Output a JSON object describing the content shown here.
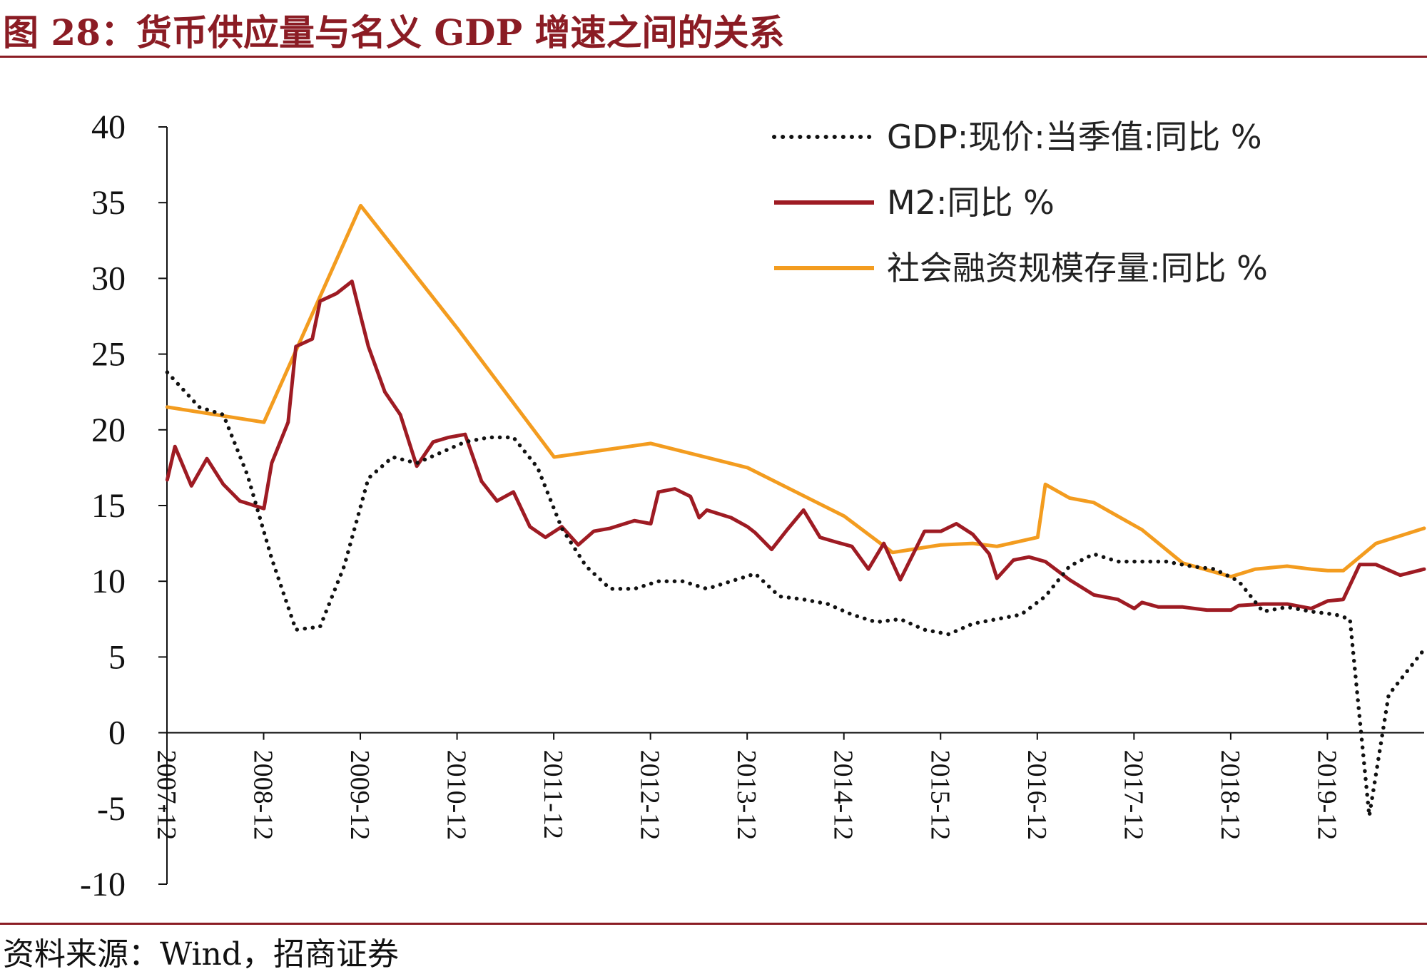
{
  "figure": {
    "title": "图 28：货币供应量与名义 GDP 增速之间的关系",
    "source": "资料来源：Wind，招商证券"
  },
  "chart_data": {
    "type": "line",
    "ylim": [
      -10,
      40
    ],
    "yticks": [
      "40",
      "35",
      "30",
      "25",
      "20",
      "15",
      "10",
      "5",
      "0",
      "-5",
      "-10"
    ],
    "ytick_values": [
      40,
      35,
      30,
      25,
      20,
      15,
      10,
      5,
      0,
      -5,
      -10
    ],
    "xlim": [
      2007.917,
      2020.917
    ],
    "xticks": [
      "2007-12",
      "2008-12",
      "2009-12",
      "2010-12",
      "2011-12",
      "2012-12",
      "2013-12",
      "2014-12",
      "2015-12",
      "2016-12",
      "2017-12",
      "2018-12",
      "2019-12"
    ],
    "legend_position": "top-right",
    "grid": false,
    "series": [
      {
        "name": "GDP:现价:当季值:同比 %",
        "color": "#111111",
        "style": "dotted",
        "points": [
          [
            2007.92,
            23.8
          ],
          [
            2008.25,
            21.5
          ],
          [
            2008.5,
            21.0
          ],
          [
            2008.75,
            17.0
          ],
          [
            2009.0,
            11.5
          ],
          [
            2009.25,
            6.8
          ],
          [
            2009.5,
            7.0
          ],
          [
            2009.75,
            11.0
          ],
          [
            2010.0,
            16.8
          ],
          [
            2010.25,
            18.2
          ],
          [
            2010.5,
            17.8
          ],
          [
            2010.75,
            18.5
          ],
          [
            2011.0,
            19.2
          ],
          [
            2011.25,
            19.5
          ],
          [
            2011.5,
            19.5
          ],
          [
            2011.75,
            17.5
          ],
          [
            2012.0,
            13.5
          ],
          [
            2012.25,
            11.0
          ],
          [
            2012.5,
            9.5
          ],
          [
            2012.75,
            9.5
          ],
          [
            2013.0,
            10.0
          ],
          [
            2013.25,
            10.0
          ],
          [
            2013.5,
            9.5
          ],
          [
            2013.75,
            10.0
          ],
          [
            2014.0,
            10.5
          ],
          [
            2014.25,
            9.0
          ],
          [
            2014.5,
            8.8
          ],
          [
            2014.75,
            8.5
          ],
          [
            2015.0,
            7.8
          ],
          [
            2015.25,
            7.3
          ],
          [
            2015.5,
            7.5
          ],
          [
            2015.75,
            6.8
          ],
          [
            2016.0,
            6.5
          ],
          [
            2016.25,
            7.2
          ],
          [
            2016.5,
            7.5
          ],
          [
            2016.75,
            7.8
          ],
          [
            2017.0,
            9.0
          ],
          [
            2017.25,
            11.0
          ],
          [
            2017.5,
            11.8
          ],
          [
            2017.75,
            11.3
          ],
          [
            2018.0,
            11.3
          ],
          [
            2018.25,
            11.3
          ],
          [
            2018.5,
            11.0
          ],
          [
            2018.75,
            10.8
          ],
          [
            2019.0,
            10.0
          ],
          [
            2019.25,
            8.0
          ],
          [
            2019.5,
            8.3
          ],
          [
            2019.75,
            8.0
          ],
          [
            2020.0,
            7.8
          ],
          [
            2020.15,
            7.5
          ],
          [
            2020.35,
            -5.5
          ],
          [
            2020.55,
            2.5
          ],
          [
            2020.917,
            5.5
          ]
        ]
      },
      {
        "name": "M2:同比 %",
        "color": "#9e1b23",
        "style": "solid",
        "points": [
          [
            2007.92,
            16.7
          ],
          [
            2008.0,
            18.9
          ],
          [
            2008.17,
            16.3
          ],
          [
            2008.33,
            18.1
          ],
          [
            2008.5,
            16.4
          ],
          [
            2008.67,
            15.3
          ],
          [
            2008.92,
            14.8
          ],
          [
            2009.0,
            17.8
          ],
          [
            2009.17,
            20.5
          ],
          [
            2009.25,
            25.5
          ],
          [
            2009.42,
            26.0
          ],
          [
            2009.5,
            28.5
          ],
          [
            2009.67,
            29.0
          ],
          [
            2009.83,
            29.8
          ],
          [
            2009.92,
            27.5
          ],
          [
            2010.0,
            25.5
          ],
          [
            2010.17,
            22.5
          ],
          [
            2010.33,
            21.0
          ],
          [
            2010.5,
            17.6
          ],
          [
            2010.67,
            19.2
          ],
          [
            2010.83,
            19.5
          ],
          [
            2011.0,
            19.7
          ],
          [
            2011.17,
            16.6
          ],
          [
            2011.33,
            15.3
          ],
          [
            2011.5,
            15.9
          ],
          [
            2011.67,
            13.6
          ],
          [
            2011.83,
            12.9
          ],
          [
            2012.0,
            13.6
          ],
          [
            2012.17,
            12.4
          ],
          [
            2012.33,
            13.3
          ],
          [
            2012.5,
            13.5
          ],
          [
            2012.75,
            14.0
          ],
          [
            2012.92,
            13.8
          ],
          [
            2013.0,
            15.9
          ],
          [
            2013.17,
            16.1
          ],
          [
            2013.33,
            15.6
          ],
          [
            2013.42,
            14.2
          ],
          [
            2013.5,
            14.7
          ],
          [
            2013.75,
            14.2
          ],
          [
            2013.92,
            13.6
          ],
          [
            2014.0,
            13.2
          ],
          [
            2014.17,
            12.1
          ],
          [
            2014.33,
            13.4
          ],
          [
            2014.5,
            14.7
          ],
          [
            2014.67,
            12.9
          ],
          [
            2014.83,
            12.6
          ],
          [
            2015.0,
            12.3
          ],
          [
            2015.17,
            10.8
          ],
          [
            2015.33,
            12.5
          ],
          [
            2015.5,
            10.1
          ],
          [
            2015.75,
            13.3
          ],
          [
            2015.92,
            13.3
          ],
          [
            2016.08,
            13.8
          ],
          [
            2016.25,
            13.1
          ],
          [
            2016.42,
            11.8
          ],
          [
            2016.5,
            10.2
          ],
          [
            2016.67,
            11.4
          ],
          [
            2016.83,
            11.6
          ],
          [
            2017.0,
            11.3
          ],
          [
            2017.25,
            10.1
          ],
          [
            2017.5,
            9.1
          ],
          [
            2017.75,
            8.8
          ],
          [
            2017.92,
            8.2
          ],
          [
            2018.0,
            8.6
          ],
          [
            2018.17,
            8.3
          ],
          [
            2018.42,
            8.3
          ],
          [
            2018.67,
            8.1
          ],
          [
            2018.92,
            8.1
          ],
          [
            2019.0,
            8.4
          ],
          [
            2019.25,
            8.5
          ],
          [
            2019.5,
            8.5
          ],
          [
            2019.75,
            8.2
          ],
          [
            2019.92,
            8.7
          ],
          [
            2020.08,
            8.8
          ],
          [
            2020.25,
            11.1
          ],
          [
            2020.42,
            11.1
          ],
          [
            2020.67,
            10.4
          ],
          [
            2020.917,
            10.8
          ]
        ]
      },
      {
        "name": "社会融资规模存量:同比 %",
        "color": "#f39c1f",
        "style": "solid",
        "points": [
          [
            2007.92,
            21.5
          ],
          [
            2008.92,
            20.5
          ],
          [
            2009.92,
            34.8
          ],
          [
            2010.92,
            26.7
          ],
          [
            2011.92,
            18.2
          ],
          [
            2012.92,
            19.1
          ],
          [
            2013.92,
            17.5
          ],
          [
            2014.92,
            14.3
          ],
          [
            2015.42,
            11.9
          ],
          [
            2015.92,
            12.4
          ],
          [
            2016.25,
            12.5
          ],
          [
            2016.5,
            12.3
          ],
          [
            2016.92,
            12.9
          ],
          [
            2017.0,
            16.4
          ],
          [
            2017.25,
            15.5
          ],
          [
            2017.5,
            15.2
          ],
          [
            2017.75,
            14.3
          ],
          [
            2018.0,
            13.4
          ],
          [
            2018.42,
            11.2
          ],
          [
            2018.92,
            10.3
          ],
          [
            2019.17,
            10.8
          ],
          [
            2019.5,
            11.0
          ],
          [
            2019.75,
            10.8
          ],
          [
            2019.92,
            10.7
          ],
          [
            2020.08,
            10.7
          ],
          [
            2020.42,
            12.5
          ],
          [
            2020.67,
            13.0
          ],
          [
            2020.917,
            13.5
          ]
        ]
      }
    ]
  }
}
